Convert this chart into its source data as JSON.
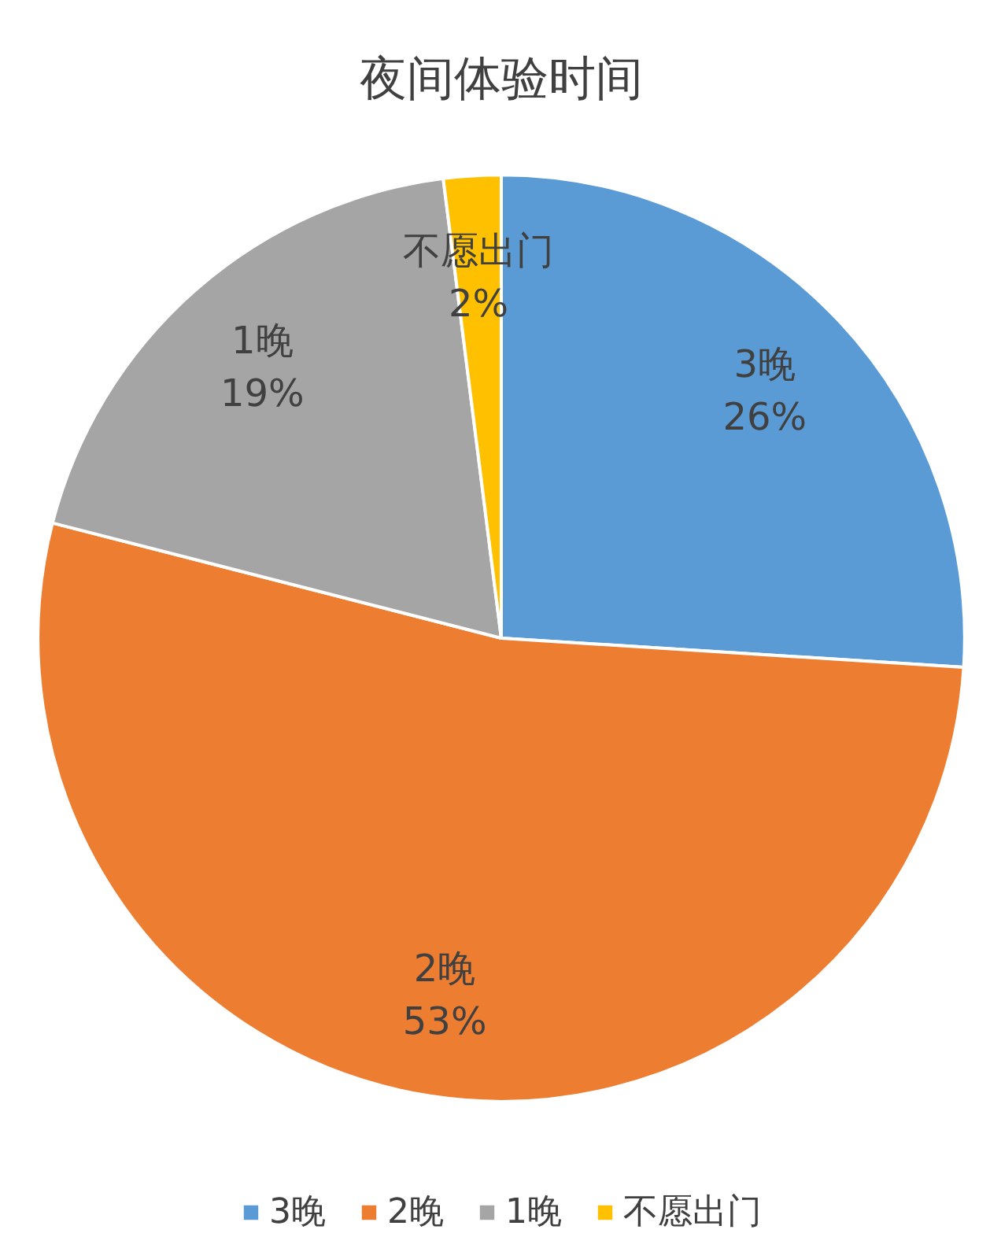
{
  "chart_data": {
    "type": "pie",
    "title": "夜间体验时间",
    "categories": [
      "3晚",
      "2晚",
      "1晚",
      "不愿出门"
    ],
    "values": [
      26,
      53,
      19,
      2
    ],
    "value_labels": [
      "26%",
      "53%",
      "19%",
      "2%"
    ],
    "colors": [
      "#5b9bd5",
      "#ed7d31",
      "#a5a5a5",
      "#ffc000"
    ],
    "legend": "bottom"
  }
}
